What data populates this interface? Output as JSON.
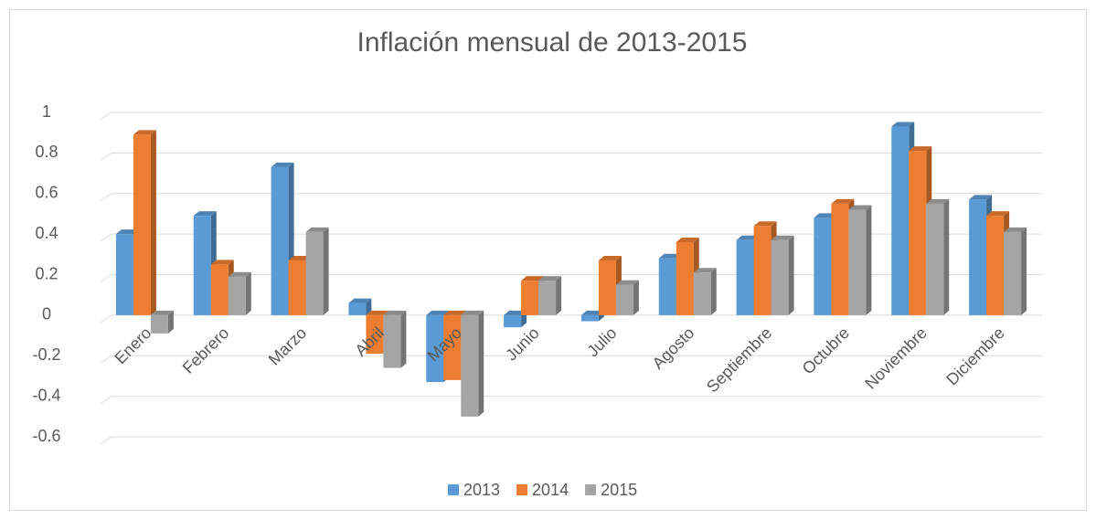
{
  "chart_data": {
    "type": "bar3d",
    "title": "Inflación mensual de 2013-2015",
    "categories": [
      "Enero",
      "Febrero",
      "Marzo",
      "Abril",
      "Mayo",
      "Junio",
      "Julio",
      "Agosto",
      "Septiembre",
      "Octubre",
      "Noviembre",
      "Diciembre"
    ],
    "series": [
      {
        "name": "2013",
        "color": "#5b9bd5",
        "values": [
          0.4,
          0.49,
          0.73,
          0.06,
          -0.33,
          -0.06,
          -0.03,
          0.28,
          0.37,
          0.48,
          0.93,
          0.57
        ]
      },
      {
        "name": "2014",
        "color": "#ed7d31",
        "values": [
          0.89,
          0.25,
          0.27,
          -0.19,
          -0.32,
          0.17,
          0.27,
          0.36,
          0.44,
          0.55,
          0.81,
          0.49
        ]
      },
      {
        "name": "2015",
        "color": "#a5a5a5",
        "values": [
          -0.09,
          0.19,
          0.41,
          -0.26,
          -0.5,
          0.17,
          0.15,
          0.21,
          0.37,
          0.52,
          0.55,
          0.41
        ]
      }
    ],
    "ylim": [
      -0.6,
      1
    ],
    "yticks": [
      -0.6,
      -0.4,
      -0.2,
      0,
      0.2,
      0.4,
      0.6,
      0.8,
      1
    ],
    "grid": true,
    "legend": "bottom"
  }
}
